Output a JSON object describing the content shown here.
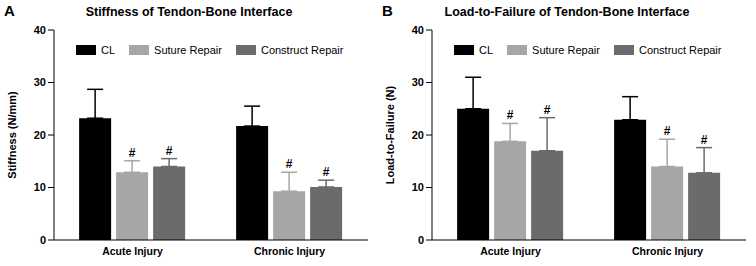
{
  "chart_data": [
    {
      "type": "bar",
      "panel": "A",
      "title": "Stiffness of Tendon-Bone Interface",
      "y_label": "Stiffness (N/mm)",
      "categories": [
        "Acute Injury",
        "Chronic Injury"
      ],
      "series": [
        {
          "name": "CL",
          "color": "#000000",
          "values": [
            23.2,
            21.7
          ],
          "errors": [
            5.5,
            3.8
          ]
        },
        {
          "name": "Suture Repair",
          "color": "#a6a6a6",
          "values": [
            12.9,
            9.3
          ],
          "errors": [
            2.2,
            3.6
          ],
          "annotation": "#"
        },
        {
          "name": "Construct Repair",
          "color": "#6b6b6b",
          "values": [
            14.0,
            10.1
          ],
          "errors": [
            1.5,
            1.3
          ],
          "annotation": "#"
        }
      ],
      "ylim": [
        0,
        40
      ],
      "yticks": [
        0,
        10,
        20,
        30,
        40
      ],
      "grid": false,
      "legend": "upper left"
    },
    {
      "type": "bar",
      "panel": "B",
      "title": "Load-to-Failure of Tendon-Bone Interface",
      "y_label": "Load-to-Failure (N)",
      "categories": [
        "Acute Injury",
        "Chronic Injury"
      ],
      "series": [
        {
          "name": "CL",
          "color": "#000000",
          "values": [
            25.0,
            22.9
          ],
          "errors": [
            6.0,
            4.4
          ]
        },
        {
          "name": "Suture Repair",
          "color": "#a6a6a6",
          "values": [
            18.8,
            14.0
          ],
          "errors": [
            3.4,
            5.2
          ],
          "annotation": "#"
        },
        {
          "name": "Construct Repair",
          "color": "#6b6b6b",
          "values": [
            17.0,
            12.8
          ],
          "errors": [
            6.3,
            4.8
          ],
          "annotation": "#"
        }
      ],
      "ylim": [
        0,
        40
      ],
      "yticks": [
        0,
        10,
        20,
        30,
        40
      ],
      "grid": false,
      "legend": "upper left"
    }
  ]
}
